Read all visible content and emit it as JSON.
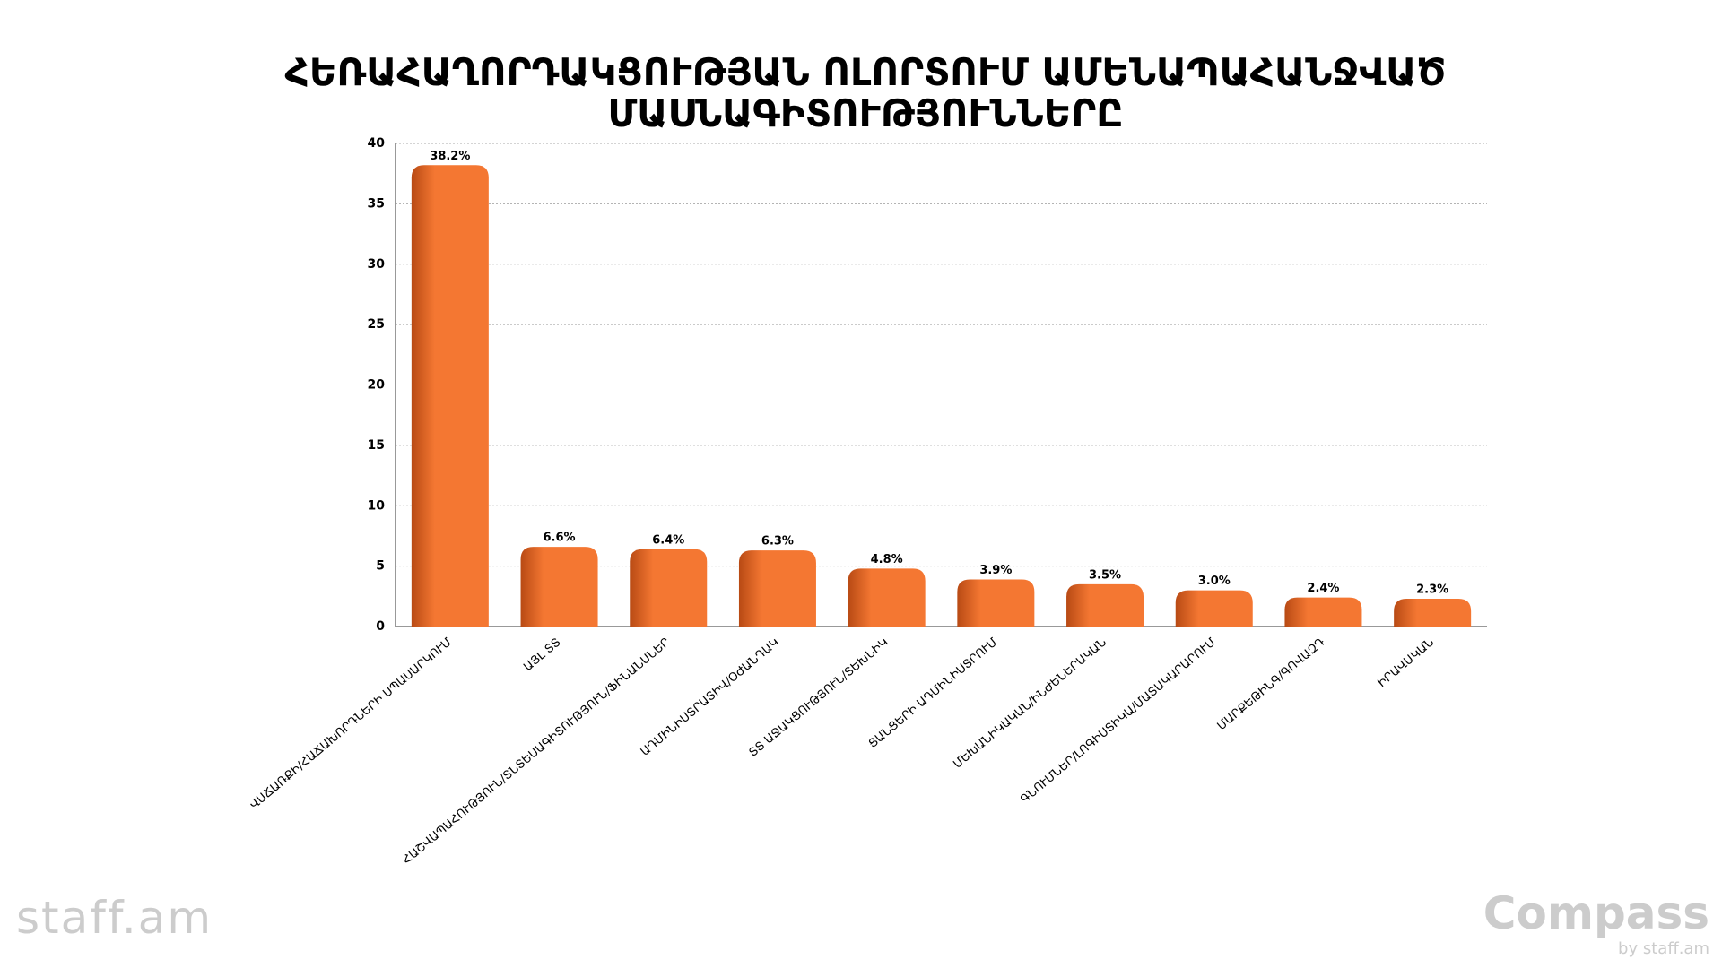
{
  "chart_data": {
    "type": "bar",
    "title": "ՀԵՌԱՀԱՂՈՐԴԱԿՑՈՒԹՅԱՆ ՈԼՈՐՏՈՒՄ ԱՄԵՆԱՊԱՀԱՆՋՎԱԾ ՄԱՍՆԱԳԻՏՈՒԹՅՈՒՆՆԵՐԸ",
    "categories": [
      "ՎԱՃԱՌՔԻ/ՀԱՃԱԽՈՐԴՆԵՐԻ ՍՊԱՍԱՐԿՈՒՄ",
      "ԱՅԼ ՏՏ",
      "ՀԱՇՎԱՊԱՀՈՒԹՅՈՒՆ/ՏՆՏԵՍԱԳԻՏՈՒԹՅՈՒՆ/ՖԻՆԱՆՍՆԵՐ",
      "ԱԴՄԻՆԻՍՏՐԱՏԻՎ/ՕԺԱՆԴԱԿ",
      "ՏՏ ԱՋԱԿՑՈՒԹՅՈՒՆ/ՏԵԽՆԻԿ",
      "ՑԱՆՑԵՐԻ ԱԴՄԻՆԻՍՏՐՈՒՄ",
      "ՄԵԽԱՆԻԿԱԿԱՆ/ԻՆԺԵՆԵՐԱԿԱՆ",
      "ԳՆՈՒՄՆԵՐ/ԼՈԳԻՍՏԻԿԱ/ՄԱՏԱԿԱՐԱՐՈՒՄ",
      "ՄԱՐՔԵԹԻՆԳ/ԳՈՎԱԶԴ",
      "ԻՐԱՎԱԿԱՆ"
    ],
    "values": [
      38.2,
      6.6,
      6.4,
      6.3,
      4.8,
      3.9,
      3.5,
      3.0,
      2.4,
      2.3
    ],
    "value_labels": [
      "38.2%",
      "6.6%",
      "6.4%",
      "6.3%",
      "4.8%",
      "3.9%",
      "3.5%",
      "3.0%",
      "2.4%",
      "2.3%"
    ],
    "color": "#f47732",
    "ylim": [
      0,
      40
    ],
    "yticks": [
      0,
      5,
      10,
      15,
      20,
      25,
      30,
      35,
      40
    ],
    "grid": true
  },
  "logos": {
    "left": "staff.am",
    "right": "Compass",
    "right_sub": "by staff.am"
  }
}
